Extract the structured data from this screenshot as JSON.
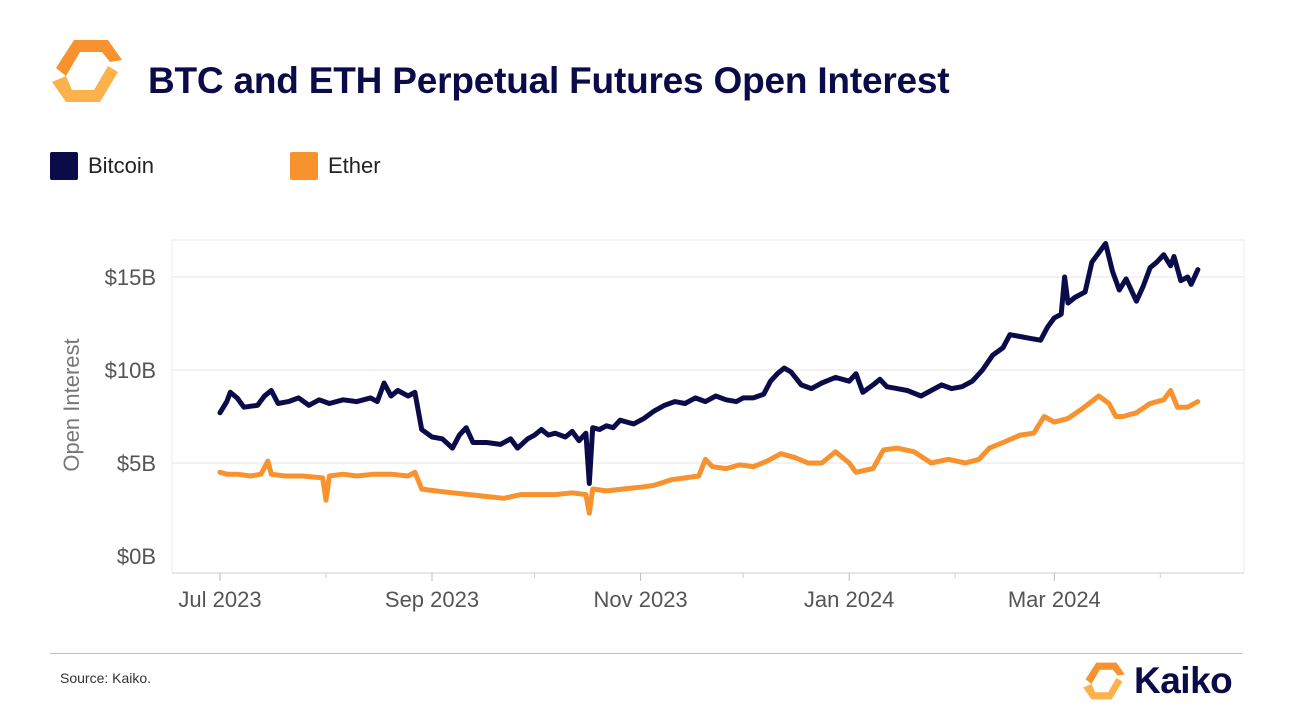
{
  "header": {
    "title": "BTC and ETH Perpetual Futures Open Interest",
    "logo_icon": "kaiko-logo-icon"
  },
  "legend": [
    {
      "label": "Bitcoin",
      "color": "#0b0b4a"
    },
    {
      "label": "Ether",
      "color": "#f7922e"
    }
  ],
  "footer": {
    "source": "Source: Kaiko.",
    "brand": "Kaiko"
  },
  "colors": {
    "bitcoin": "#0b0b4a",
    "ether": "#f7922e",
    "brand_orange": "#f7922e",
    "grid": "#e6e6e6"
  },
  "chart_data": {
    "type": "line",
    "title": "BTC and ETH Perpetual Futures Open Interest",
    "xlabel": "",
    "ylabel": "Open Interest",
    "x_range": [
      "2023-07-01",
      "2024-04-10"
    ],
    "ylim": [
      0,
      18
    ],
    "y_unit": "billion USD",
    "y_ticks": [
      {
        "value": 0,
        "label": "$0B"
      },
      {
        "value": 5,
        "label": "$5B"
      },
      {
        "value": 10,
        "label": "$10B"
      },
      {
        "value": 15,
        "label": "$15B"
      }
    ],
    "x_ticks": [
      {
        "date": "2023-07-01",
        "label": "Jul 2023"
      },
      {
        "date": "2023-09-01",
        "label": "Sep 2023"
      },
      {
        "date": "2023-11-01",
        "label": "Nov 2023"
      },
      {
        "date": "2024-01-01",
        "label": "Jan 2024"
      },
      {
        "date": "2024-03-01",
        "label": "Mar 2024"
      }
    ],
    "x_minor_ticks": [
      "2023-08-01",
      "2023-10-01",
      "2023-12-01",
      "2024-02-01",
      "2024-04-01"
    ],
    "grid": true,
    "legend_position": "top-left",
    "series": [
      {
        "name": "Bitcoin",
        "color": "#0b0b4a",
        "points": [
          [
            "2023-07-01",
            7.7
          ],
          [
            "2023-07-03",
            8.3
          ],
          [
            "2023-07-04",
            8.8
          ],
          [
            "2023-07-06",
            8.5
          ],
          [
            "2023-07-08",
            8.0
          ],
          [
            "2023-07-12",
            8.1
          ],
          [
            "2023-07-14",
            8.6
          ],
          [
            "2023-07-16",
            8.9
          ],
          [
            "2023-07-18",
            8.2
          ],
          [
            "2023-07-21",
            8.3
          ],
          [
            "2023-07-24",
            8.5
          ],
          [
            "2023-07-27",
            8.1
          ],
          [
            "2023-07-30",
            8.4
          ],
          [
            "2023-08-02",
            8.2
          ],
          [
            "2023-08-06",
            8.4
          ],
          [
            "2023-08-10",
            8.3
          ],
          [
            "2023-08-14",
            8.5
          ],
          [
            "2023-08-16",
            8.3
          ],
          [
            "2023-08-18",
            9.3
          ],
          [
            "2023-08-20",
            8.6
          ],
          [
            "2023-08-22",
            8.9
          ],
          [
            "2023-08-25",
            8.6
          ],
          [
            "2023-08-27",
            8.8
          ],
          [
            "2023-08-29",
            6.8
          ],
          [
            "2023-09-01",
            6.4
          ],
          [
            "2023-09-04",
            6.3
          ],
          [
            "2023-09-07",
            5.8
          ],
          [
            "2023-09-09",
            6.5
          ],
          [
            "2023-09-11",
            6.9
          ],
          [
            "2023-09-13",
            6.1
          ],
          [
            "2023-09-17",
            6.1
          ],
          [
            "2023-09-21",
            6.0
          ],
          [
            "2023-09-24",
            6.3
          ],
          [
            "2023-09-26",
            5.8
          ],
          [
            "2023-09-29",
            6.3
          ],
          [
            "2023-10-01",
            6.5
          ],
          [
            "2023-10-03",
            6.8
          ],
          [
            "2023-10-05",
            6.5
          ],
          [
            "2023-10-07",
            6.6
          ],
          [
            "2023-10-10",
            6.4
          ],
          [
            "2023-10-12",
            6.7
          ],
          [
            "2023-10-14",
            6.2
          ],
          [
            "2023-10-16",
            6.6
          ],
          [
            "2023-10-17",
            3.9
          ],
          [
            "2023-10-18",
            6.9
          ],
          [
            "2023-10-20",
            6.8
          ],
          [
            "2023-10-22",
            7.0
          ],
          [
            "2023-10-24",
            6.9
          ],
          [
            "2023-10-26",
            7.3
          ],
          [
            "2023-10-28",
            7.2
          ],
          [
            "2023-10-30",
            7.1
          ],
          [
            "2023-11-02",
            7.4
          ],
          [
            "2023-11-05",
            7.8
          ],
          [
            "2023-11-08",
            8.1
          ],
          [
            "2023-11-11",
            8.3
          ],
          [
            "2023-11-14",
            8.2
          ],
          [
            "2023-11-17",
            8.5
          ],
          [
            "2023-11-20",
            8.3
          ],
          [
            "2023-11-23",
            8.6
          ],
          [
            "2023-11-26",
            8.4
          ],
          [
            "2023-11-29",
            8.3
          ],
          [
            "2023-12-01",
            8.5
          ],
          [
            "2023-12-04",
            8.5
          ],
          [
            "2023-12-07",
            8.7
          ],
          [
            "2023-12-09",
            9.4
          ],
          [
            "2023-12-11",
            9.8
          ],
          [
            "2023-12-13",
            10.1
          ],
          [
            "2023-12-15",
            9.9
          ],
          [
            "2023-12-18",
            9.2
          ],
          [
            "2023-12-21",
            9.0
          ],
          [
            "2023-12-24",
            9.3
          ],
          [
            "2023-12-28",
            9.6
          ],
          [
            "2024-01-01",
            9.4
          ],
          [
            "2024-01-03",
            9.8
          ],
          [
            "2024-01-05",
            8.8
          ],
          [
            "2024-01-08",
            9.2
          ],
          [
            "2024-01-10",
            9.5
          ],
          [
            "2024-01-12",
            9.1
          ],
          [
            "2024-01-15",
            9.0
          ],
          [
            "2024-01-18",
            8.9
          ],
          [
            "2024-01-22",
            8.6
          ],
          [
            "2024-01-25",
            8.9
          ],
          [
            "2024-01-28",
            9.2
          ],
          [
            "2024-01-31",
            9.0
          ],
          [
            "2024-02-03",
            9.1
          ],
          [
            "2024-02-06",
            9.4
          ],
          [
            "2024-02-09",
            10.0
          ],
          [
            "2024-02-12",
            10.8
          ],
          [
            "2024-02-15",
            11.2
          ],
          [
            "2024-02-17",
            11.9
          ],
          [
            "2024-02-20",
            11.8
          ],
          [
            "2024-02-23",
            11.7
          ],
          [
            "2024-02-26",
            11.6
          ],
          [
            "2024-02-28",
            12.3
          ],
          [
            "2024-03-01",
            12.8
          ],
          [
            "2024-03-03",
            13.0
          ],
          [
            "2024-03-04",
            15.0
          ],
          [
            "2024-03-05",
            13.6
          ],
          [
            "2024-03-07",
            13.9
          ],
          [
            "2024-03-10",
            14.2
          ],
          [
            "2024-03-12",
            15.8
          ],
          [
            "2024-03-14",
            16.3
          ],
          [
            "2024-03-16",
            16.8
          ],
          [
            "2024-03-18",
            15.3
          ],
          [
            "2024-03-20",
            14.3
          ],
          [
            "2024-03-22",
            14.9
          ],
          [
            "2024-03-25",
            13.7
          ],
          [
            "2024-03-27",
            14.5
          ],
          [
            "2024-03-29",
            15.5
          ],
          [
            "2024-03-31",
            15.8
          ],
          [
            "2024-04-02",
            16.2
          ],
          [
            "2024-04-04",
            15.6
          ],
          [
            "2024-04-05",
            16.1
          ],
          [
            "2024-04-07",
            14.8
          ],
          [
            "2024-04-09",
            15.0
          ],
          [
            "2024-04-10",
            14.6
          ],
          [
            "2024-04-12",
            15.4
          ]
        ]
      },
      {
        "name": "Ether",
        "color": "#f7922e",
        "points": [
          [
            "2023-07-01",
            4.5
          ],
          [
            "2023-07-03",
            4.4
          ],
          [
            "2023-07-06",
            4.4
          ],
          [
            "2023-07-10",
            4.3
          ],
          [
            "2023-07-13",
            4.4
          ],
          [
            "2023-07-15",
            5.1
          ],
          [
            "2023-07-16",
            4.4
          ],
          [
            "2023-07-20",
            4.3
          ],
          [
            "2023-07-25",
            4.3
          ],
          [
            "2023-07-31",
            4.2
          ],
          [
            "2023-08-01",
            3.0
          ],
          [
            "2023-08-02",
            4.3
          ],
          [
            "2023-08-06",
            4.4
          ],
          [
            "2023-08-10",
            4.3
          ],
          [
            "2023-08-15",
            4.4
          ],
          [
            "2023-08-20",
            4.4
          ],
          [
            "2023-08-25",
            4.3
          ],
          [
            "2023-08-27",
            4.5
          ],
          [
            "2023-08-29",
            3.6
          ],
          [
            "2023-09-02",
            3.5
          ],
          [
            "2023-09-07",
            3.4
          ],
          [
            "2023-09-12",
            3.3
          ],
          [
            "2023-09-17",
            3.2
          ],
          [
            "2023-09-22",
            3.1
          ],
          [
            "2023-09-27",
            3.3
          ],
          [
            "2023-10-02",
            3.3
          ],
          [
            "2023-10-07",
            3.3
          ],
          [
            "2023-10-12",
            3.4
          ],
          [
            "2023-10-16",
            3.3
          ],
          [
            "2023-10-17",
            2.3
          ],
          [
            "2023-10-18",
            3.6
          ],
          [
            "2023-10-22",
            3.5
          ],
          [
            "2023-10-27",
            3.6
          ],
          [
            "2023-11-01",
            3.7
          ],
          [
            "2023-11-05",
            3.8
          ],
          [
            "2023-11-10",
            4.1
          ],
          [
            "2023-11-14",
            4.2
          ],
          [
            "2023-11-18",
            4.3
          ],
          [
            "2023-11-20",
            5.2
          ],
          [
            "2023-11-22",
            4.8
          ],
          [
            "2023-11-26",
            4.7
          ],
          [
            "2023-11-30",
            4.9
          ],
          [
            "2023-12-04",
            4.8
          ],
          [
            "2023-12-08",
            5.1
          ],
          [
            "2023-12-12",
            5.5
          ],
          [
            "2023-12-16",
            5.3
          ],
          [
            "2023-12-20",
            5.0
          ],
          [
            "2023-12-24",
            5.0
          ],
          [
            "2023-12-28",
            5.6
          ],
          [
            "2024-01-01",
            5.0
          ],
          [
            "2024-01-03",
            4.5
          ],
          [
            "2024-01-08",
            4.7
          ],
          [
            "2024-01-11",
            5.7
          ],
          [
            "2024-01-15",
            5.8
          ],
          [
            "2024-01-20",
            5.6
          ],
          [
            "2024-01-25",
            5.0
          ],
          [
            "2024-01-30",
            5.2
          ],
          [
            "2024-02-04",
            5.0
          ],
          [
            "2024-02-08",
            5.2
          ],
          [
            "2024-02-11",
            5.8
          ],
          [
            "2024-02-15",
            6.1
          ],
          [
            "2024-02-20",
            6.5
          ],
          [
            "2024-02-24",
            6.6
          ],
          [
            "2024-02-27",
            7.5
          ],
          [
            "2024-03-01",
            7.2
          ],
          [
            "2024-03-05",
            7.4
          ],
          [
            "2024-03-09",
            7.9
          ],
          [
            "2024-03-14",
            8.6
          ],
          [
            "2024-03-17",
            8.2
          ],
          [
            "2024-03-19",
            7.5
          ],
          [
            "2024-03-21",
            7.5
          ],
          [
            "2024-03-25",
            7.7
          ],
          [
            "2024-03-29",
            8.2
          ],
          [
            "2024-04-02",
            8.4
          ],
          [
            "2024-04-04",
            8.9
          ],
          [
            "2024-04-06",
            8.0
          ],
          [
            "2024-04-09",
            8.0
          ],
          [
            "2024-04-12",
            8.3
          ]
        ]
      }
    ]
  }
}
